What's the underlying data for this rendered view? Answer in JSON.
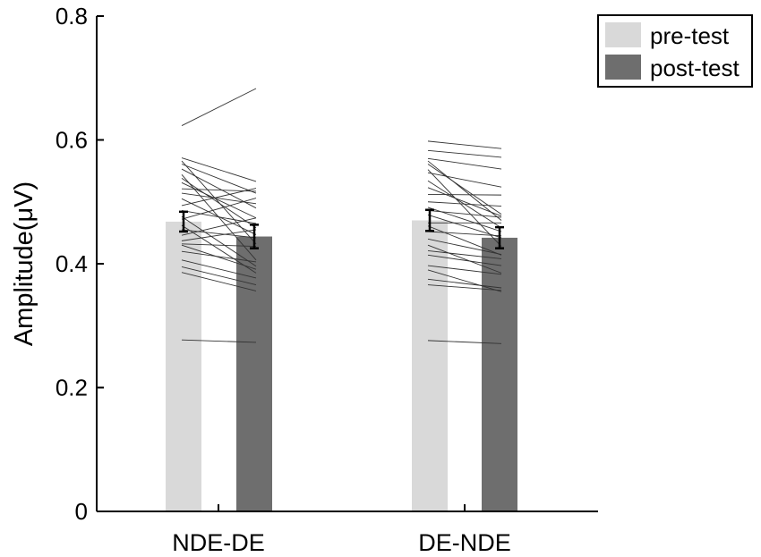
{
  "chart_data": {
    "type": "bar",
    "ylabel": "Amplitude(μV)",
    "ylim": [
      0,
      0.8
    ],
    "yticks": [
      0,
      0.2,
      0.4,
      0.6,
      0.8
    ],
    "ytick_labels": [
      "0",
      "0.2",
      "0.4",
      "0.6",
      "0.8"
    ],
    "categories": [
      "NDE-DE",
      "DE-NDE"
    ],
    "legend_position": "top-right",
    "series": [
      {
        "name": "pre-test",
        "color": "#d9d9d9",
        "values": [
          0.468,
          0.47
        ],
        "errors": [
          0.016,
          0.017
        ]
      },
      {
        "name": "post-test",
        "color": "#6e6e6e",
        "values": [
          0.444,
          0.442
        ],
        "errors": [
          0.019,
          0.017
        ]
      }
    ],
    "individual_lines": [
      [
        [
          0.623,
          0.683
        ],
        [
          0.571,
          0.533
        ],
        [
          0.566,
          0.432
        ],
        [
          0.561,
          0.514
        ],
        [
          0.553,
          0.49
        ],
        [
          0.544,
          0.406
        ],
        [
          0.538,
          0.458
        ],
        [
          0.531,
          0.474
        ],
        [
          0.521,
          0.517
        ],
        [
          0.514,
          0.497
        ],
        [
          0.505,
          0.447
        ],
        [
          0.494,
          0.522
        ],
        [
          0.486,
          0.465
        ],
        [
          0.476,
          0.396
        ],
        [
          0.472,
          0.506
        ],
        [
          0.462,
          0.385
        ],
        [
          0.455,
          0.442
        ],
        [
          0.446,
          0.474
        ],
        [
          0.437,
          0.455
        ],
        [
          0.432,
          0.428
        ],
        [
          0.43,
          0.391
        ],
        [
          0.42,
          0.403
        ],
        [
          0.406,
          0.377
        ],
        [
          0.395,
          0.366
        ],
        [
          0.386,
          0.356
        ],
        [
          0.277,
          0.273
        ]
      ],
      [
        [
          0.598,
          0.586
        ],
        [
          0.583,
          0.572
        ],
        [
          0.57,
          0.553
        ],
        [
          0.566,
          0.47
        ],
        [
          0.561,
          0.48
        ],
        [
          0.552,
          0.428
        ],
        [
          0.547,
          0.524
        ],
        [
          0.534,
          0.458
        ],
        [
          0.523,
          0.477
        ],
        [
          0.512,
          0.511
        ],
        [
          0.5,
          0.493
        ],
        [
          0.491,
          0.452
        ],
        [
          0.486,
          0.475
        ],
        [
          0.479,
          0.442
        ],
        [
          0.466,
          0.466
        ],
        [
          0.461,
          0.414
        ],
        [
          0.452,
          0.445
        ],
        [
          0.44,
          0.415
        ],
        [
          0.43,
          0.385
        ],
        [
          0.421,
          0.408
        ],
        [
          0.414,
          0.397
        ],
        [
          0.397,
          0.383
        ],
        [
          0.39,
          0.355
        ],
        [
          0.375,
          0.361
        ],
        [
          0.366,
          0.357
        ],
        [
          0.276,
          0.271
        ]
      ]
    ]
  }
}
